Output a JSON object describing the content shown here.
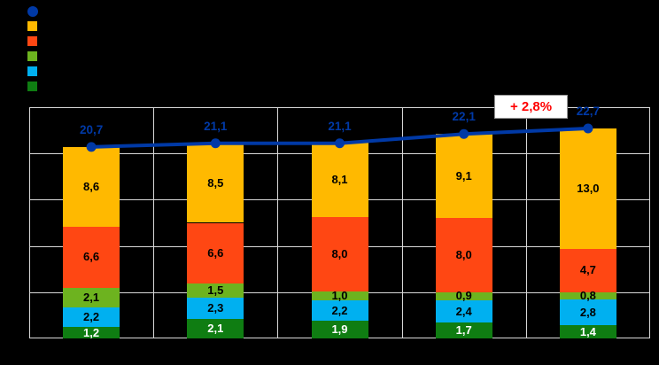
{
  "page": {
    "background": "#000000"
  },
  "legend": {
    "items": [
      {
        "name": "legend-line-total",
        "marker": "circle",
        "color": "#0039A6",
        "label": ""
      },
      {
        "name": "legend-series-amber",
        "marker": "square",
        "color": "#FFB900",
        "label": ""
      },
      {
        "name": "legend-series-red",
        "marker": "square",
        "color": "#FF4713",
        "label": ""
      },
      {
        "name": "legend-series-green",
        "marker": "square",
        "color": "#6DB31F",
        "label": ""
      },
      {
        "name": "legend-series-cyan",
        "marker": "square",
        "color": "#00B0F0",
        "label": ""
      },
      {
        "name": "legend-series-darkgreen",
        "marker": "square",
        "color": "#0F7D12",
        "label": ""
      }
    ]
  },
  "annotation": {
    "text": "+ 2,8%",
    "text_color": "#FF0000",
    "background": "#FFFFFF",
    "border_color": "#969696"
  },
  "chart_data": {
    "type": "bar",
    "subtype": "stacked-bars-with-total-line",
    "categories": [
      "",
      "",
      "",
      "",
      ""
    ],
    "series": [
      {
        "name": "darkgreen-bottom-segment",
        "color": "#0F7D12",
        "values": [
          1.2,
          2.1,
          1.9,
          1.7,
          1.4
        ],
        "labels": [
          "1,2",
          "2,1",
          "1,9",
          "1,7",
          "1,4"
        ],
        "label_color": "#FFFFFF"
      },
      {
        "name": "cyan-segment",
        "color": "#00B0F0",
        "values": [
          2.2,
          2.3,
          2.2,
          2.4,
          2.8
        ],
        "labels": [
          "2,2",
          "2,3",
          "2,2",
          "2,4",
          "2,8"
        ],
        "label_color": "#000000"
      },
      {
        "name": "green-segment",
        "color": "#6DB31F",
        "values": [
          2.1,
          1.5,
          1.0,
          0.9,
          0.8
        ],
        "labels": [
          "2,1",
          "1,5",
          "1,0",
          "0,9",
          "0,8"
        ],
        "label_color": "#000000"
      },
      {
        "name": "red-segment",
        "color": "#FF4713",
        "values": [
          6.6,
          6.6,
          8.0,
          8.0,
          4.7
        ],
        "labels": [
          "6,6",
          "6,6",
          "8,0",
          "8,0",
          "4,7"
        ],
        "label_color": "#000000"
      },
      {
        "name": "amber-top-segment",
        "color": "#FFB900",
        "values": [
          8.6,
          8.5,
          8.1,
          9.1,
          13.0
        ],
        "labels": [
          "8,6",
          "8,5",
          "8,1",
          "9,1",
          "13,0"
        ],
        "label_color": "#000000"
      }
    ],
    "line": {
      "name": "total-line",
      "color": "#0039A6",
      "values": [
        20.7,
        21.1,
        21.1,
        22.1,
        22.7
      ],
      "labels": [
        "20,7",
        "21,1",
        "21,1",
        "22,1",
        "22,7"
      ]
    },
    "title": "",
    "xlabel": "",
    "ylabel": "",
    "ylim": [
      0,
      25
    ],
    "y_step": 5,
    "grid": true,
    "grid_color": "#D9D9D9",
    "plot_background": "#000000",
    "legend_position": "top-left"
  }
}
